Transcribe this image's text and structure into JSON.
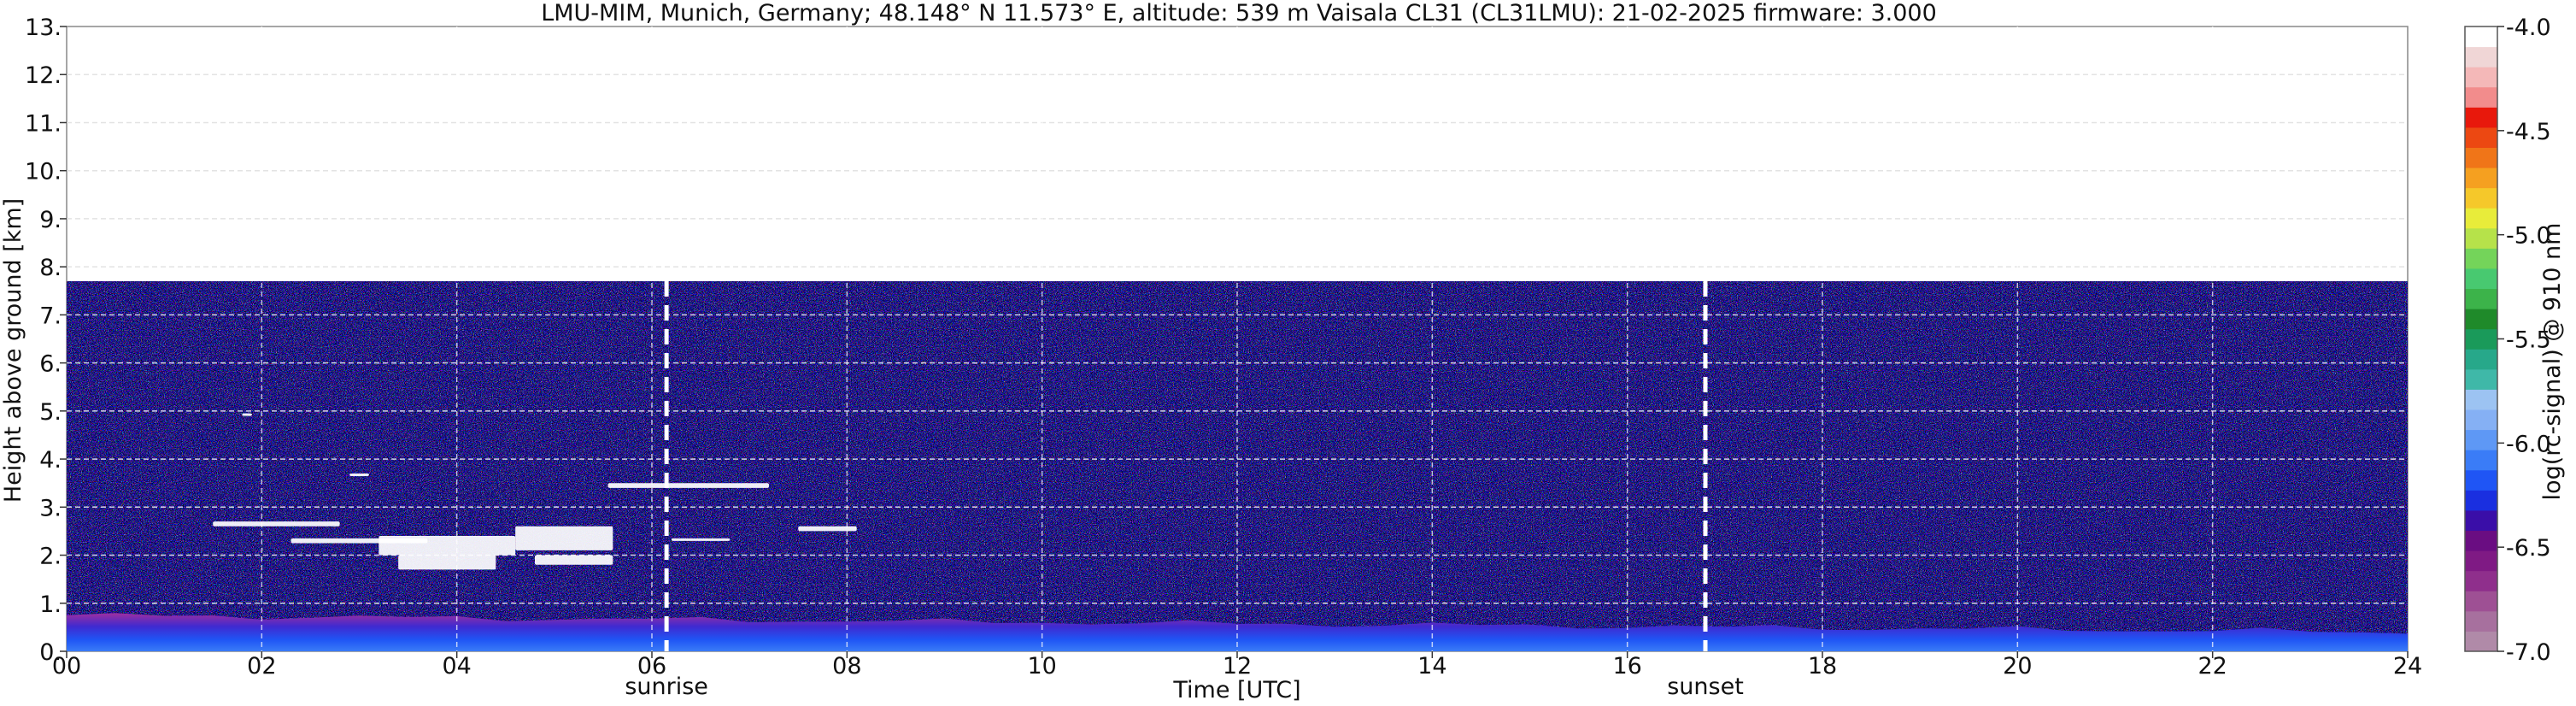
{
  "chart_data": {
    "type": "heatmap",
    "title": "LMU-MIM, Munich, Germany; 48.148° N 11.573° E, altitude: 539 m    Vaisala CL31 (CL31LMU): 21-02-2025    firmware: 3.000",
    "xlabel": "Time [UTC]",
    "ylabel": "Height above ground [km]",
    "xlim": [
      0,
      24
    ],
    "ylim": [
      0,
      13
    ],
    "x_ticks": [
      "00",
      "02",
      "04",
      "06",
      "08",
      "10",
      "12",
      "14",
      "16",
      "18",
      "20",
      "22",
      "24"
    ],
    "y_ticks": [
      "0.",
      "1.",
      "2.",
      "3.",
      "4.",
      "5.",
      "6.",
      "7.",
      "8.",
      "9.",
      "10.",
      "11.",
      "12.",
      "13."
    ],
    "grid": true,
    "data_ceiling_km": 7.7,
    "colorbar": {
      "label": "log(rc-signal) @ 910 nm",
      "range": [
        -7.0,
        -4.0
      ],
      "ticks": [
        "-4.0",
        "-4.5",
        "-5.0",
        "-5.5",
        "-6.0",
        "-6.5",
        "-7.0"
      ],
      "colors": [
        "#b08aa8",
        "#a7709e",
        "#9e5094",
        "#8f2f8c",
        "#7f1a84",
        "#6a0d82",
        "#3a0ea8",
        "#1a2fe0",
        "#1f55f5",
        "#3a7cf7",
        "#5e98f5",
        "#85b0f4",
        "#9cc3f2",
        "#3fb8a8",
        "#27a88a",
        "#1a9a5a",
        "#1f8a2a",
        "#3cb34a",
        "#48c970",
        "#74d45a",
        "#b6e24a",
        "#e8ec3a",
        "#f5c82a",
        "#f5a020",
        "#f07518",
        "#ec4812",
        "#e8180c",
        "#f28c8c",
        "#f4b8b8",
        "#f0d6d6",
        "#ffffff"
      ]
    },
    "annotations": [
      {
        "x": 6.15,
        "label": "sunrise"
      },
      {
        "x": 16.8,
        "label": "sunset"
      }
    ],
    "features": [
      {
        "name": "boundary-layer",
        "x": [
          0,
          24
        ],
        "top_km": [
          0.75,
          0.4
        ]
      },
      {
        "name": "cloud-layer-low",
        "x": [
          1.5,
          5.6
        ],
        "y_km": [
          1.7,
          2.7
        ]
      },
      {
        "name": "cloud-layer-mid",
        "x": [
          5.5,
          7.2
        ],
        "y_km": [
          3.4,
          3.5
        ]
      }
    ]
  }
}
